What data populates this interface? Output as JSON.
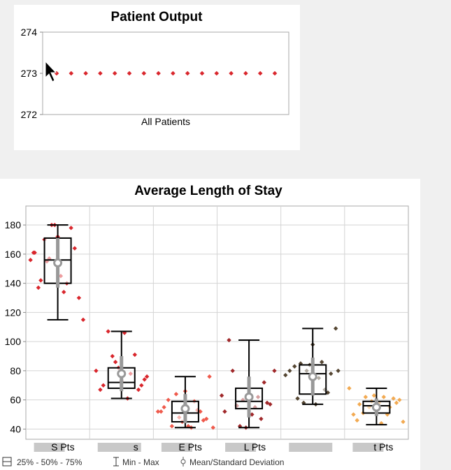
{
  "chart_data": [
    {
      "type": "scatter",
      "title": "Patient Output",
      "categories": [
        "All Patients"
      ],
      "ylim": [
        272,
        274
      ],
      "yticks": [
        274,
        273,
        272
      ],
      "grid": false,
      "points_y": [
        273,
        273,
        273,
        273,
        273,
        273,
        273,
        273,
        273,
        273,
        273,
        273,
        273,
        273,
        273,
        273
      ],
      "point_color": "#d9262c"
    },
    {
      "type": "box",
      "title": "Average Length of Stay",
      "ylim": [
        33,
        193
      ],
      "yticks": [
        180,
        160,
        140,
        120,
        100,
        80,
        60,
        40
      ],
      "grid": true,
      "categories": [
        "S Pts",
        "s",
        "E Pts",
        "L Pts",
        "",
        "t Pts"
      ],
      "series": [
        {
          "label": "S Pts",
          "color": "#d9262c",
          "min": 115,
          "q1": 140,
          "median": 156,
          "q3": 171,
          "max": 180,
          "mean": 154,
          "sd": 17,
          "points": [
            [
              -0.45,
              156
            ],
            [
              -0.4,
              161
            ],
            [
              -0.32,
              137
            ],
            [
              -0.28,
              142
            ],
            [
              -0.22,
              170
            ],
            [
              -0.18,
              155
            ],
            [
              -0.14,
              157
            ],
            [
              -0.1,
              180
            ],
            [
              -0.05,
              180
            ],
            [
              0.0,
              172
            ],
            [
              0.05,
              145
            ],
            [
              0.1,
              134
            ],
            [
              0.15,
              140
            ],
            [
              0.22,
              178
            ],
            [
              0.28,
              164
            ],
            [
              0.35,
              130
            ],
            [
              0.42,
              115
            ],
            [
              -0.38,
              161
            ]
          ]
        },
        {
          "label": "s",
          "color": "#d9262c",
          "min": 61,
          "q1": 68,
          "median": 72,
          "q3": 82,
          "max": 107,
          "mean": 78,
          "sd": 12,
          "points": [
            [
              -0.42,
              80
            ],
            [
              -0.35,
              67
            ],
            [
              -0.3,
              70
            ],
            [
              -0.22,
              107
            ],
            [
              -0.15,
              90
            ],
            [
              -0.1,
              86
            ],
            [
              -0.05,
              82
            ],
            [
              0.0,
              73
            ],
            [
              0.05,
              106
            ],
            [
              0.1,
              61
            ],
            [
              0.15,
              78
            ],
            [
              0.22,
              91
            ],
            [
              0.28,
              67
            ],
            [
              0.33,
              70
            ],
            [
              0.38,
              74
            ],
            [
              0.42,
              76
            ]
          ]
        },
        {
          "label": "E Pts",
          "color": "#ef5a4c",
          "min": 41,
          "q1": 45,
          "median": 51,
          "q3": 59,
          "max": 76,
          "mean": 54,
          "sd": 10,
          "points": [
            [
              -0.45,
              52
            ],
            [
              -0.4,
              52
            ],
            [
              -0.35,
              55
            ],
            [
              -0.28,
              60
            ],
            [
              -0.22,
              42
            ],
            [
              -0.15,
              64
            ],
            [
              -0.1,
              48
            ],
            [
              -0.05,
              45
            ],
            [
              0.0,
              66
            ],
            [
              0.05,
              42
            ],
            [
              0.1,
              41
            ],
            [
              0.15,
              59
            ],
            [
              0.2,
              53
            ],
            [
              0.25,
              52
            ],
            [
              0.3,
              46
            ],
            [
              0.35,
              47
            ],
            [
              0.4,
              76
            ],
            [
              0.46,
              41
            ]
          ]
        },
        {
          "label": "L Pts",
          "color": "#a0282a",
          "min": 41,
          "q1": 54,
          "median": 59,
          "q3": 68,
          "max": 101,
          "mean": 62,
          "sd": 14,
          "points": [
            [
              -0.45,
              63
            ],
            [
              -0.4,
              52
            ],
            [
              -0.33,
              101
            ],
            [
              -0.27,
              80
            ],
            [
              -0.2,
              56
            ],
            [
              -0.15,
              42
            ],
            [
              -0.1,
              60
            ],
            [
              -0.05,
              41
            ],
            [
              0.0,
              63
            ],
            [
              0.05,
              50
            ],
            [
              0.1,
              55
            ],
            [
              0.15,
              62
            ],
            [
              0.2,
              47
            ],
            [
              0.25,
              72
            ],
            [
              0.3,
              58
            ],
            [
              0.35,
              57
            ],
            [
              0.42,
              80
            ]
          ]
        },
        {
          "label": "",
          "color": "#554632",
          "min": 57,
          "q1": 64,
          "median": 78,
          "q3": 84,
          "max": 109,
          "mean": 76,
          "sd": 13,
          "points": [
            [
              -0.45,
              77
            ],
            [
              -0.38,
              80
            ],
            [
              -0.3,
              83
            ],
            [
              -0.25,
              61
            ],
            [
              -0.2,
              85
            ],
            [
              -0.15,
              58
            ],
            [
              -0.1,
              80
            ],
            [
              -0.05,
              84
            ],
            [
              0.0,
              98
            ],
            [
              0.05,
              57
            ],
            [
              0.1,
              75
            ],
            [
              0.15,
              86
            ],
            [
              0.2,
              67
            ],
            [
              0.25,
              65
            ],
            [
              0.3,
              78
            ],
            [
              0.38,
              109
            ],
            [
              0.42,
              80
            ]
          ]
        },
        {
          "label": "t Pts",
          "color": "#f2aa52",
          "min": 43,
          "q1": 51,
          "median": 56,
          "q3": 59,
          "max": 68,
          "mean": 55,
          "sd": 6,
          "points": [
            [
              -0.45,
              68
            ],
            [
              -0.38,
              50
            ],
            [
              -0.32,
              46
            ],
            [
              -0.28,
              57
            ],
            [
              -0.22,
              51
            ],
            [
              -0.18,
              62
            ],
            [
              -0.12,
              55
            ],
            [
              -0.08,
              59
            ],
            [
              -0.04,
              63
            ],
            [
              0.0,
              55
            ],
            [
              0.04,
              58
            ],
            [
              0.08,
              44
            ],
            [
              0.12,
              62
            ],
            [
              0.18,
              50
            ],
            [
              0.22,
              55
            ],
            [
              0.28,
              61
            ],
            [
              0.33,
              58
            ],
            [
              0.38,
              60
            ],
            [
              0.44,
              45
            ]
          ]
        }
      ],
      "legend": [
        {
          "icon": "box-icon",
          "text": "25% - 50% - 75%"
        },
        {
          "icon": "whisker-icon",
          "text": "Min - Max"
        },
        {
          "icon": "mean-sd-icon",
          "text": "Mean/Standard Deviation"
        }
      ]
    }
  ]
}
